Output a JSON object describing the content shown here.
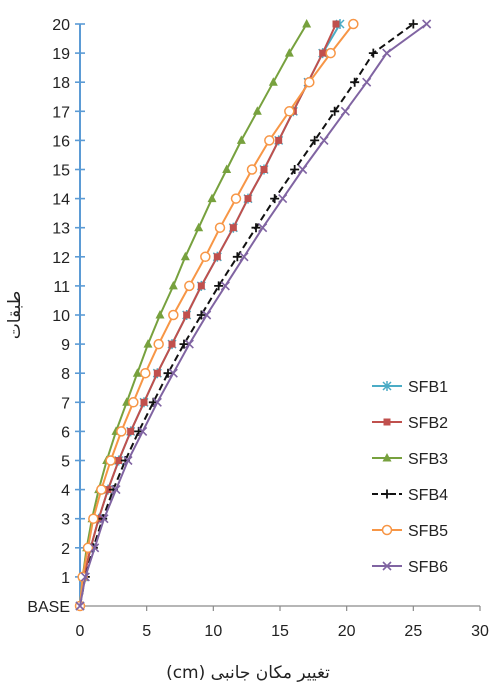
{
  "chart_data": {
    "type": "line",
    "title": "",
    "xlabel": "تغییر مکان جانبی (cm)",
    "ylabel": "طبقات",
    "xlim": [
      0,
      30
    ],
    "x_ticks": [
      "0",
      "5",
      "10",
      "15",
      "20",
      "25",
      "30"
    ],
    "categories": [
      "BASE",
      "1",
      "2",
      "3",
      "4",
      "5",
      "6",
      "7",
      "8",
      "9",
      "10",
      "11",
      "12",
      "13",
      "14",
      "15",
      "16",
      "17",
      "18",
      "19",
      "20"
    ],
    "grid": false,
    "legend_position": "bottom-right",
    "series": [
      {
        "name": "SFB1",
        "color": "#4bacc6",
        "marker": "star",
        "dash": "solid",
        "values": [
          0,
          0.3,
          0.8,
          1.4,
          2.1,
          2.9,
          3.8,
          4.8,
          5.8,
          6.9,
          8.0,
          9.1,
          10.3,
          11.5,
          12.6,
          13.8,
          14.9,
          16.0,
          17.1,
          18.2,
          19.5
        ]
      },
      {
        "name": "SFB2",
        "color": "#c0504d",
        "marker": "square",
        "dash": "solid",
        "values": [
          0,
          0.3,
          0.8,
          1.4,
          2.1,
          2.9,
          3.8,
          4.8,
          5.8,
          6.9,
          8.0,
          9.1,
          10.3,
          11.5,
          12.6,
          13.8,
          14.9,
          16.0,
          17.1,
          18.2,
          19.2
        ]
      },
      {
        "name": "SFB3",
        "color": "#77a13e",
        "marker": "triangle",
        "dash": "solid",
        "values": [
          0,
          0.2,
          0.5,
          0.9,
          1.4,
          2.0,
          2.7,
          3.5,
          4.3,
          5.1,
          6.0,
          7.0,
          7.9,
          8.9,
          9.9,
          11.0,
          12.1,
          13.3,
          14.5,
          15.7,
          17.0
        ]
      },
      {
        "name": "SFB4",
        "color": "#111111",
        "marker": "plus",
        "dash": "dashed",
        "values": [
          0,
          0.4,
          1.0,
          1.7,
          2.5,
          3.4,
          4.4,
          5.5,
          6.6,
          7.8,
          9.1,
          10.4,
          11.8,
          13.2,
          14.6,
          16.1,
          17.6,
          19.1,
          20.6,
          22.0,
          25.0
        ]
      },
      {
        "name": "SFB5",
        "color": "#f79646",
        "marker": "circle",
        "dash": "solid",
        "values": [
          0,
          0.2,
          0.6,
          1.0,
          1.6,
          2.3,
          3.1,
          4.0,
          4.9,
          5.9,
          7.0,
          8.2,
          9.4,
          10.5,
          11.7,
          12.9,
          14.2,
          15.7,
          17.2,
          18.8,
          20.5
        ]
      },
      {
        "name": "SFB6",
        "color": "#8064a2",
        "marker": "x",
        "dash": "solid",
        "values": [
          0,
          0.4,
          1.1,
          1.8,
          2.7,
          3.6,
          4.7,
          5.8,
          7.0,
          8.2,
          9.5,
          10.9,
          12.3,
          13.7,
          15.2,
          16.7,
          18.3,
          19.9,
          21.5,
          23.0,
          26.0
        ]
      }
    ]
  }
}
